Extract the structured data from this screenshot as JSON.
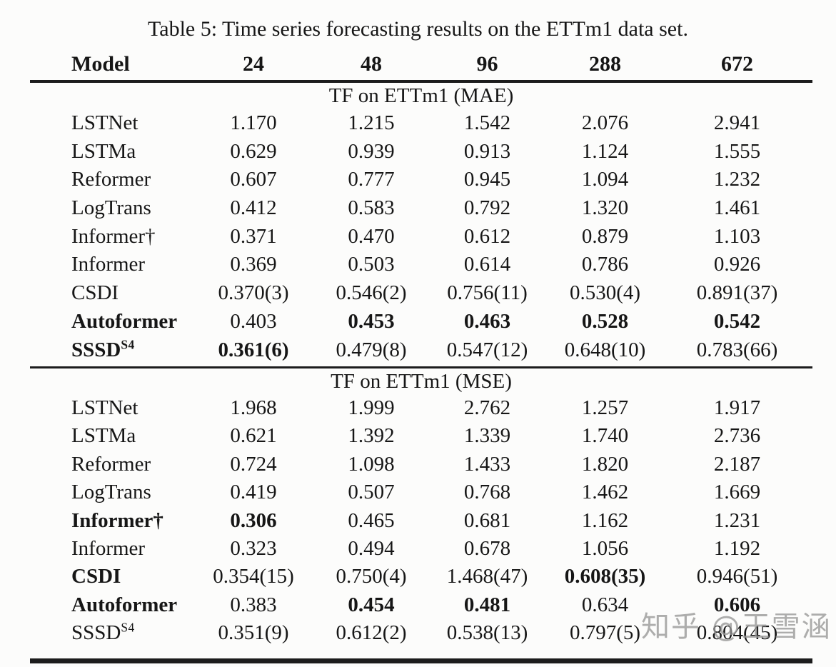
{
  "title": "Table 5: Time series forecasting results on the ETTm1 data set.",
  "columns": [
    "Model",
    "24",
    "48",
    "96",
    "288",
    "672"
  ],
  "sections": [
    {
      "header": "TF on ETTm1 (MAE)",
      "rows": [
        {
          "model": {
            "name": "LSTNet",
            "bold": false
          },
          "cells": [
            {
              "v": "1.170"
            },
            {
              "v": "1.215"
            },
            {
              "v": "1.542"
            },
            {
              "v": "2.076"
            },
            {
              "v": "2.941"
            }
          ]
        },
        {
          "model": {
            "name": "LSTMa",
            "bold": false
          },
          "cells": [
            {
              "v": "0.629"
            },
            {
              "v": "0.939"
            },
            {
              "v": "0.913"
            },
            {
              "v": "1.124"
            },
            {
              "v": "1.555"
            }
          ]
        },
        {
          "model": {
            "name": "Reformer",
            "bold": false
          },
          "cells": [
            {
              "v": "0.607"
            },
            {
              "v": "0.777"
            },
            {
              "v": "0.945"
            },
            {
              "v": "1.094"
            },
            {
              "v": "1.232"
            }
          ]
        },
        {
          "model": {
            "name": "LogTrans",
            "bold": false
          },
          "cells": [
            {
              "v": "0.412"
            },
            {
              "v": "0.583"
            },
            {
              "v": "0.792"
            },
            {
              "v": "1.320"
            },
            {
              "v": "1.461"
            }
          ]
        },
        {
          "model": {
            "name": "Informer†",
            "bold": false
          },
          "cells": [
            {
              "v": "0.371"
            },
            {
              "v": "0.470"
            },
            {
              "v": "0.612"
            },
            {
              "v": "0.879"
            },
            {
              "v": "1.103"
            }
          ]
        },
        {
          "model": {
            "name": "Informer",
            "bold": false
          },
          "cells": [
            {
              "v": "0.369"
            },
            {
              "v": "0.503"
            },
            {
              "v": "0.614"
            },
            {
              "v": "0.786"
            },
            {
              "v": "0.926"
            }
          ]
        },
        {
          "model": {
            "name": "CSDI",
            "bold": false
          },
          "cells": [
            {
              "v": "0.370(3)"
            },
            {
              "v": "0.546(2)"
            },
            {
              "v": "0.756(11)"
            },
            {
              "v": "0.530(4)"
            },
            {
              "v": "0.891(37)"
            }
          ]
        },
        {
          "model": {
            "name": "Autoformer",
            "bold": true
          },
          "cells": [
            {
              "v": "0.403"
            },
            {
              "v": "0.453",
              "bold": true
            },
            {
              "v": "0.463",
              "bold": true
            },
            {
              "v": "0.528",
              "bold": true
            },
            {
              "v": "0.542",
              "bold": true
            }
          ]
        },
        {
          "model": {
            "name": "SSSD",
            "sup": "S4",
            "bold": true
          },
          "cells": [
            {
              "v": "0.361(6)",
              "bold": true
            },
            {
              "v": "0.479(8)"
            },
            {
              "v": "0.547(12)"
            },
            {
              "v": "0.648(10)"
            },
            {
              "v": "0.783(66)"
            }
          ]
        }
      ]
    },
    {
      "header": "TF on ETTm1 (MSE)",
      "rows": [
        {
          "model": {
            "name": "LSTNet",
            "bold": false
          },
          "cells": [
            {
              "v": "1.968"
            },
            {
              "v": "1.999"
            },
            {
              "v": "2.762"
            },
            {
              "v": "1.257"
            },
            {
              "v": "1.917"
            }
          ]
        },
        {
          "model": {
            "name": "LSTMa",
            "bold": false
          },
          "cells": [
            {
              "v": "0.621"
            },
            {
              "v": "1.392"
            },
            {
              "v": "1.339"
            },
            {
              "v": "1.740"
            },
            {
              "v": "2.736"
            }
          ]
        },
        {
          "model": {
            "name": "Reformer",
            "bold": false
          },
          "cells": [
            {
              "v": "0.724"
            },
            {
              "v": "1.098"
            },
            {
              "v": "1.433"
            },
            {
              "v": "1.820"
            },
            {
              "v": "2.187"
            }
          ]
        },
        {
          "model": {
            "name": "LogTrans",
            "bold": false
          },
          "cells": [
            {
              "v": "0.419"
            },
            {
              "v": "0.507"
            },
            {
              "v": "0.768"
            },
            {
              "v": "1.462"
            },
            {
              "v": "1.669"
            }
          ]
        },
        {
          "model": {
            "name": "Informer†",
            "bold": true
          },
          "cells": [
            {
              "v": "0.306",
              "bold": true
            },
            {
              "v": "0.465"
            },
            {
              "v": "0.681"
            },
            {
              "v": "1.162"
            },
            {
              "v": "1.231"
            }
          ]
        },
        {
          "model": {
            "name": "Informer",
            "bold": false
          },
          "cells": [
            {
              "v": "0.323"
            },
            {
              "v": "0.494"
            },
            {
              "v": "0.678"
            },
            {
              "v": "1.056"
            },
            {
              "v": "1.192"
            }
          ]
        },
        {
          "model": {
            "name": "CSDI",
            "bold": true
          },
          "cells": [
            {
              "v": "0.354(15)"
            },
            {
              "v": "0.750(4)"
            },
            {
              "v": "1.468(47)"
            },
            {
              "v": "0.608(35)",
              "bold": true
            },
            {
              "v": "0.946(51)"
            }
          ]
        },
        {
          "model": {
            "name": "Autoformer",
            "bold": true
          },
          "cells": [
            {
              "v": "0.383"
            },
            {
              "v": "0.454",
              "bold": true
            },
            {
              "v": "0.481",
              "bold": true
            },
            {
              "v": "0.634"
            },
            {
              "v": "0.606",
              "bold": true
            }
          ]
        },
        {
          "model": {
            "name": "SSSD",
            "sup": "S4",
            "bold": false
          },
          "cells": [
            {
              "v": "0.351(9)"
            },
            {
              "v": "0.612(2)"
            },
            {
              "v": "0.538(13)"
            },
            {
              "v": "0.797(5)"
            },
            {
              "v": "0.804(45)"
            }
          ]
        }
      ]
    }
  ],
  "watermark": "知乎 @王雪涵",
  "colors": {
    "background": "#fcfcfb",
    "text": "#161616",
    "rule": "#1c1c1c",
    "watermark": "#969696"
  }
}
